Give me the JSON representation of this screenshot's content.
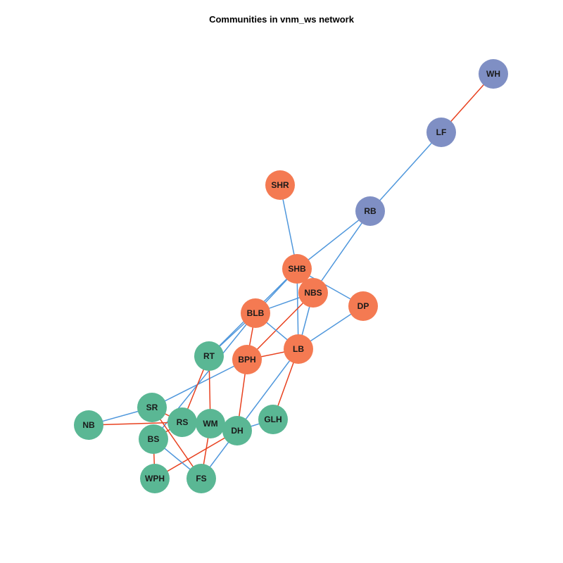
{
  "title": "Communities in vnm_ws network",
  "colors": {
    "community_1": "#f47a52",
    "community_2": "#7f8fc4",
    "community_3": "#5ab794",
    "edge_within": "#e8411f",
    "edge_between": "#4f97dc"
  },
  "nodes": [
    {
      "id": "WH",
      "community": "community_2"
    },
    {
      "id": "LF",
      "community": "community_2"
    },
    {
      "id": "RB",
      "community": "community_2"
    },
    {
      "id": "SHR",
      "community": "community_1"
    },
    {
      "id": "SHB",
      "community": "community_1"
    },
    {
      "id": "NBS",
      "community": "community_1"
    },
    {
      "id": "DP",
      "community": "community_1"
    },
    {
      "id": "BLB",
      "community": "community_1"
    },
    {
      "id": "LB",
      "community": "community_1"
    },
    {
      "id": "BPH",
      "community": "community_1"
    },
    {
      "id": "RT",
      "community": "community_3"
    },
    {
      "id": "SR",
      "community": "community_3"
    },
    {
      "id": "NB",
      "community": "community_3"
    },
    {
      "id": "RS",
      "community": "community_3"
    },
    {
      "id": "WM",
      "community": "community_3"
    },
    {
      "id": "DH",
      "community": "community_3"
    },
    {
      "id": "GLH",
      "community": "community_3"
    },
    {
      "id": "BS",
      "community": "community_3"
    },
    {
      "id": "WPH",
      "community": "community_3"
    },
    {
      "id": "FS",
      "community": "community_3"
    }
  ],
  "edges": [
    {
      "source": "WH",
      "target": "LF",
      "type": "edge_within"
    },
    {
      "source": "LF",
      "target": "RB",
      "type": "edge_between"
    },
    {
      "source": "RB",
      "target": "SHB",
      "type": "edge_between"
    },
    {
      "source": "RB",
      "target": "NBS",
      "type": "edge_between"
    },
    {
      "source": "SHR",
      "target": "SHB",
      "type": "edge_between"
    },
    {
      "source": "SHB",
      "target": "NBS",
      "type": "edge_within"
    },
    {
      "source": "SHB",
      "target": "DP",
      "type": "edge_between"
    },
    {
      "source": "SHB",
      "target": "LB",
      "type": "edge_between"
    },
    {
      "source": "SHB",
      "target": "BLB",
      "type": "edge_between"
    },
    {
      "source": "SHB",
      "target": "RT",
      "type": "edge_between"
    },
    {
      "source": "NBS",
      "target": "BLB",
      "type": "edge_between"
    },
    {
      "source": "NBS",
      "target": "LB",
      "type": "edge_between"
    },
    {
      "source": "NBS",
      "target": "BPH",
      "type": "edge_within"
    },
    {
      "source": "DP",
      "target": "LB",
      "type": "edge_between"
    },
    {
      "source": "BLB",
      "target": "LB",
      "type": "edge_between"
    },
    {
      "source": "BLB",
      "target": "BPH",
      "type": "edge_within"
    },
    {
      "source": "BLB",
      "target": "RT",
      "type": "edge_between"
    },
    {
      "source": "BLB",
      "target": "BS",
      "type": "edge_between"
    },
    {
      "source": "LB",
      "target": "BPH",
      "type": "edge_within"
    },
    {
      "source": "LB",
      "target": "GLH",
      "type": "edge_within"
    },
    {
      "source": "LB",
      "target": "DH",
      "type": "edge_between"
    },
    {
      "source": "BPH",
      "target": "SR",
      "type": "edge_between"
    },
    {
      "source": "BPH",
      "target": "DH",
      "type": "edge_within"
    },
    {
      "source": "RT",
      "target": "RS",
      "type": "edge_within"
    },
    {
      "source": "RT",
      "target": "WM",
      "type": "edge_within"
    },
    {
      "source": "SR",
      "target": "NB",
      "type": "edge_between"
    },
    {
      "source": "SR",
      "target": "RS",
      "type": "edge_within"
    },
    {
      "source": "NB",
      "target": "RS",
      "type": "edge_within"
    },
    {
      "source": "SR",
      "target": "FS",
      "type": "edge_within"
    },
    {
      "source": "RS",
      "target": "DH",
      "type": "edge_within"
    },
    {
      "source": "WM",
      "target": "DH",
      "type": "edge_within"
    },
    {
      "source": "WM",
      "target": "FS",
      "type": "edge_within"
    },
    {
      "source": "DH",
      "target": "GLH",
      "type": "edge_between"
    },
    {
      "source": "DH",
      "target": "FS",
      "type": "edge_between"
    },
    {
      "source": "DH",
      "target": "WPH",
      "type": "edge_within"
    },
    {
      "source": "BS",
      "target": "WPH",
      "type": "edge_within"
    },
    {
      "source": "BS",
      "target": "FS",
      "type": "edge_between"
    },
    {
      "source": "BS",
      "target": "RS",
      "type": "edge_within"
    }
  ]
}
